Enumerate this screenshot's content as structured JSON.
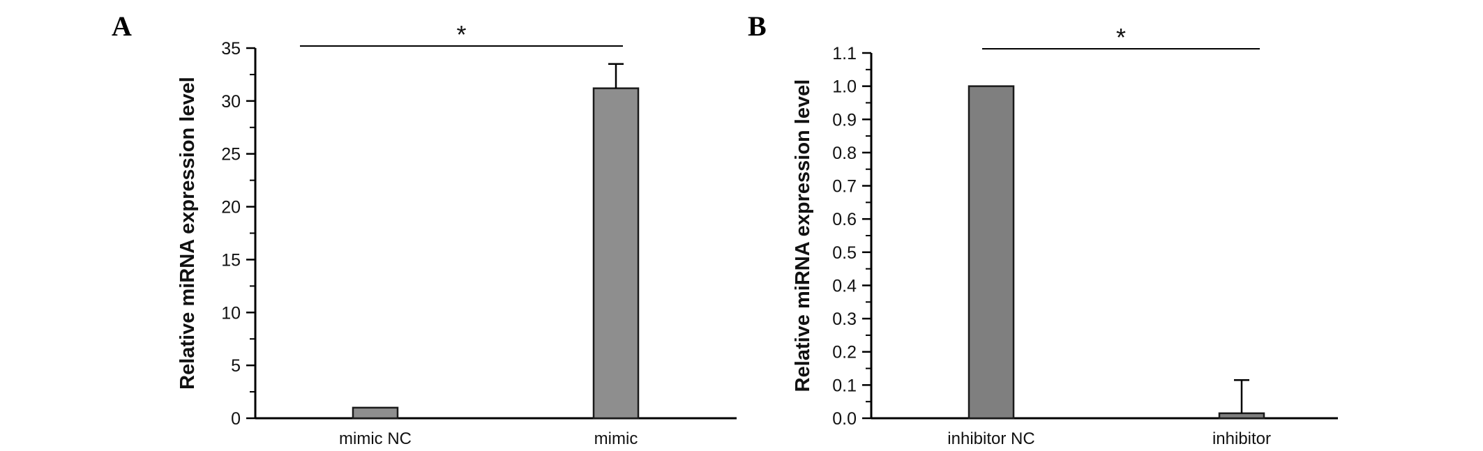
{
  "figure": {
    "background": "#ffffff",
    "axis_color": "#000000",
    "significance_label": "*"
  },
  "panels": [
    {
      "label": "A"
    },
    {
      "label": "B"
    }
  ],
  "chart_data": [
    {
      "type": "bar",
      "panel": "A",
      "title": "",
      "xlabel": "",
      "ylabel": "Relative miRNA expression level",
      "categories": [
        "mimic NC",
        "mimic"
      ],
      "values": [
        1.0,
        31.2
      ],
      "errors_plus": [
        0,
        2.3
      ],
      "ylim": [
        0,
        35
      ],
      "yticks": [
        0,
        5,
        10,
        15,
        20,
        25,
        30,
        35
      ],
      "ytick_labels": [
        "0",
        "5",
        "10",
        "15",
        "20",
        "25",
        "30",
        "35"
      ],
      "minor_ticks": true,
      "grid": false,
      "legend": "none",
      "bar_color": "#8e8e8e",
      "bar_edge_color": "#1a1a1a",
      "significance": {
        "label": "*",
        "between": [
          0,
          1
        ]
      }
    },
    {
      "type": "bar",
      "panel": "B",
      "title": "",
      "xlabel": "",
      "ylabel": "Relative miRNA expression level",
      "categories": [
        "inhibitor NC",
        "inhibitor"
      ],
      "values": [
        1.0,
        0.015
      ],
      "errors_plus": [
        0,
        0.1
      ],
      "ylim": [
        0,
        1.1
      ],
      "yticks": [
        0,
        0.1,
        0.2,
        0.3,
        0.4,
        0.5,
        0.6,
        0.7,
        0.8,
        0.9,
        1.0,
        1.1
      ],
      "ytick_labels": [
        "0.0",
        "0.1",
        "0.2",
        "0.3",
        "0.4",
        "0.5",
        "0.6",
        "0.7",
        "0.8",
        "0.9",
        "1.0",
        "1.1"
      ],
      "minor_ticks": true,
      "grid": false,
      "legend": "none",
      "bar_color": "#7f7f7f",
      "bar_edge_color": "#1a1a1a",
      "significance": {
        "label": "*",
        "between": [
          0,
          1
        ]
      }
    }
  ]
}
